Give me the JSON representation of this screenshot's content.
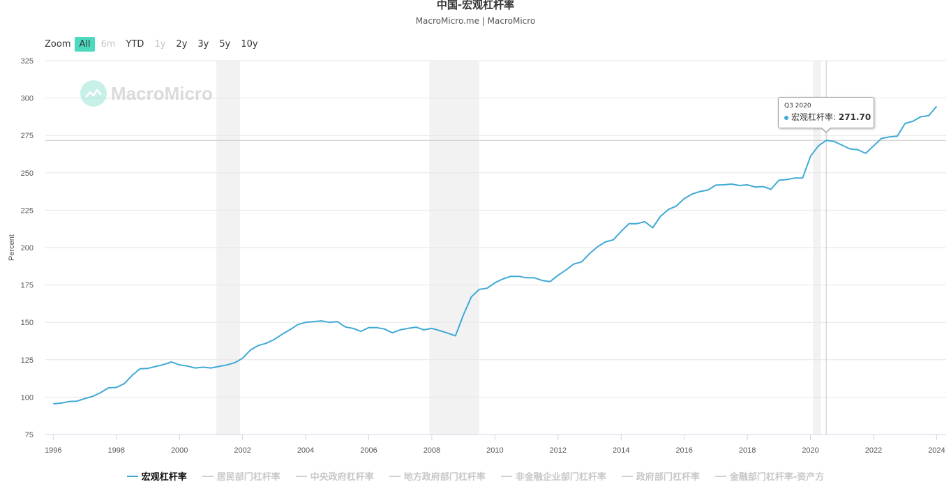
{
  "header": {
    "title": "中国-宏观杠杆率",
    "subtitle": "MacroMicro.me | MacroMicro"
  },
  "zoom": {
    "label": "Zoom",
    "buttons": [
      {
        "label": "All",
        "state": "active"
      },
      {
        "label": "6m",
        "state": "disabled"
      },
      {
        "label": "YTD",
        "state": "normal"
      },
      {
        "label": "1y",
        "state": "disabled"
      },
      {
        "label": "2y",
        "state": "normal"
      },
      {
        "label": "3y",
        "state": "normal"
      },
      {
        "label": "5y",
        "state": "normal"
      },
      {
        "label": "10y",
        "state": "normal"
      }
    ]
  },
  "watermark": {
    "text": "MacroMicro",
    "icon": "macromicro-logo-icon"
  },
  "tooltip": {
    "date": "Q3 2020",
    "series": "宏观杠杆率",
    "value": "271.70"
  },
  "legend": [
    {
      "label": "宏观杠杆率",
      "active": true
    },
    {
      "label": "居民部门杠杆率",
      "active": false
    },
    {
      "label": "中央政府杠杆率",
      "active": false
    },
    {
      "label": "地方政府部门杠杆率",
      "active": false
    },
    {
      "label": "非金融企业部门杠杆率",
      "active": false
    },
    {
      "label": "政府部门杠杆率",
      "active": false
    },
    {
      "label": "金融部门杠杆率-资产方",
      "active": false
    }
  ],
  "colors": {
    "series": "#3fa9d6",
    "accent": "#4cd9c0",
    "recession": "#f2f2f2"
  },
  "chart_data": {
    "type": "line",
    "ylabel": "Percent",
    "xlabel": "",
    "ylim": [
      75,
      325
    ],
    "xlim": [
      1995.75,
      2024.3
    ],
    "yticks": [
      75,
      100,
      125,
      150,
      175,
      200,
      225,
      250,
      275,
      300,
      325
    ],
    "xticks": [
      "1996",
      "1998",
      "2000",
      "2002",
      "2004",
      "2006",
      "2008",
      "2010",
      "2012",
      "2014",
      "2016",
      "2018",
      "2020",
      "2022",
      "2024"
    ],
    "grid": true,
    "recession_bands": [
      [
        2001.17,
        2001.92
      ],
      [
        2007.92,
        2009.5
      ],
      [
        2020.08,
        2020.33
      ]
    ],
    "crosshair": {
      "x": 2020.5,
      "y": 271.7
    },
    "series": [
      {
        "name": "宏观杠杆率",
        "x": [
          1996.0,
          1996.25,
          1996.5,
          1996.75,
          1997.0,
          1997.25,
          1997.5,
          1997.75,
          1998.0,
          1998.25,
          1998.5,
          1998.75,
          1999.0,
          1999.25,
          1999.5,
          1999.75,
          2000.0,
          2000.25,
          2000.5,
          2000.75,
          2001.0,
          2001.25,
          2001.5,
          2001.75,
          2002.0,
          2002.25,
          2002.5,
          2002.75,
          2003.0,
          2003.25,
          2003.5,
          2003.75,
          2004.0,
          2004.25,
          2004.5,
          2004.75,
          2005.0,
          2005.25,
          2005.5,
          2005.75,
          2006.0,
          2006.25,
          2006.5,
          2006.75,
          2007.0,
          2007.25,
          2007.5,
          2007.75,
          2008.0,
          2008.25,
          2008.5,
          2008.75,
          2009.0,
          2009.25,
          2009.5,
          2009.75,
          2010.0,
          2010.25,
          2010.5,
          2010.75,
          2011.0,
          2011.25,
          2011.5,
          2011.75,
          2012.0,
          2012.25,
          2012.5,
          2012.75,
          2013.0,
          2013.25,
          2013.5,
          2013.75,
          2014.0,
          2014.25,
          2014.5,
          2014.75,
          2015.0,
          2015.25,
          2015.5,
          2015.75,
          2016.0,
          2016.25,
          2016.5,
          2016.75,
          2017.0,
          2017.25,
          2017.5,
          2017.75,
          2018.0,
          2018.25,
          2018.5,
          2018.75,
          2019.0,
          2019.25,
          2019.5,
          2019.75,
          2020.0,
          2020.25,
          2020.5,
          2020.75,
          2021.0,
          2021.25,
          2021.5,
          2021.75,
          2022.0,
          2022.25,
          2022.5,
          2022.75,
          2023.0,
          2023.25,
          2023.5,
          2023.75,
          2024.0
        ],
        "y": [
          95.5,
          96.0,
          97.0,
          97.3,
          99.0,
          100.5,
          103.0,
          106.2,
          106.5,
          109.0,
          114.5,
          119.0,
          119.2,
          120.5,
          121.8,
          123.5,
          121.5,
          120.8,
          119.5,
          120.0,
          119.5,
          120.5,
          121.5,
          123.0,
          126.0,
          131.5,
          134.5,
          136.0,
          138.5,
          142.0,
          145.0,
          148.5,
          150.0,
          150.5,
          151.0,
          150.0,
          150.5,
          147.0,
          146.0,
          144.0,
          146.5,
          146.5,
          145.5,
          143.0,
          145.0,
          146.0,
          146.8,
          145.0,
          146.0,
          144.5,
          142.8,
          141.0,
          155.0,
          167.0,
          172.0,
          172.8,
          176.5,
          179.0,
          180.8,
          180.8,
          179.8,
          179.8,
          178.0,
          177.3,
          181.5,
          185.0,
          189.0,
          190.5,
          196.0,
          200.5,
          203.8,
          205.2,
          210.8,
          216.0,
          216.0,
          217.3,
          213.3,
          221.0,
          225.5,
          227.8,
          232.8,
          235.8,
          237.5,
          238.5,
          241.8,
          242.0,
          242.5,
          241.5,
          242.0,
          240.5,
          240.8,
          239.0,
          245.0,
          245.5,
          246.5,
          246.5,
          261.0,
          268.0,
          271.7,
          271.0,
          268.5,
          266.0,
          265.5,
          263.0,
          268.0,
          273.0,
          274.0,
          274.5,
          283.0,
          284.5,
          287.5,
          288.2,
          294.5
        ]
      }
    ]
  }
}
